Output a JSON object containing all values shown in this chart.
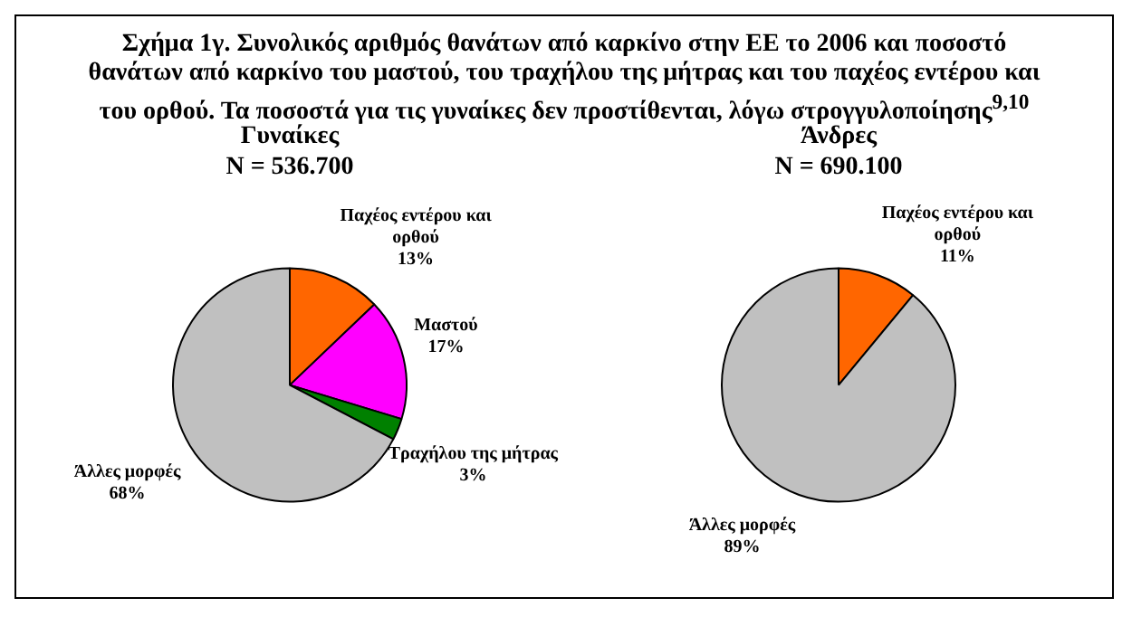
{
  "chart_data": [
    {
      "type": "pie",
      "title": "Γυναίκες",
      "subtitle": "N = 536.700",
      "annotations": [
        "Σχήμα 1γ. Συνολικός αριθμός θανάτων από καρκίνο στην ΕΕ το 2006 και ποσοστό θανάτων από καρκίνο του μαστού, του τραχήλου της μήτρας και του παχέος εντέρου και του ορθού. Τα ποσοστά για τις γυναίκες δεν προστίθενται, λόγω στρογγυλοποίησης$^{9,10}$"
      ],
      "categories": [
        "Παχέος εντέρου και ορθού",
        "Μαστού",
        "Τραχήλου της μήτρας",
        "Άλλες μορφές"
      ],
      "values": [
        13,
        17,
        3,
        68
      ],
      "value_labels": [
        "13%",
        "17%",
        "3%",
        "68%"
      ],
      "colors": [
        "#ff6600",
        "#ff00ff",
        "#008000",
        "#c0c0c0"
      ],
      "legend": false
    },
    {
      "type": "pie",
      "title": "Άνδρες",
      "subtitle": "N = 690.100",
      "categories": [
        "Παχέος εντέρου και ορθού",
        "Άλλες μορφές"
      ],
      "values": [
        11,
        89
      ],
      "value_labels": [
        "11%",
        "89%"
      ],
      "colors": [
        "#ff6600",
        "#c0c0c0"
      ],
      "legend": false
    }
  ]
}
